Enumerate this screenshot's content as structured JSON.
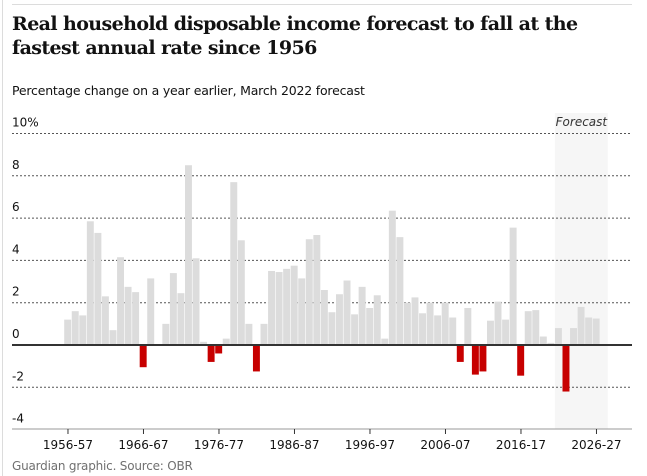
{
  "header": {
    "title": "Real household disposable income forecast to fall at the fastest annual rate since 1956",
    "subtitle": "Percentage change on a year earlier, March 2022 forecast"
  },
  "footer": {
    "source": "Guardian graphic. Source: OBR"
  },
  "colors": {
    "positive": "#dcdcdc",
    "negative": "#c70000",
    "forecast_shade": "#f6f6f6",
    "zero_line": "#333333",
    "grid": "#555555"
  },
  "chart_data": {
    "type": "bar",
    "title": "Real household disposable income forecast to fall at the fastest annual rate since 1956",
    "subtitle": "Percentage change on a year earlier, March 2022 forecast",
    "xlabel": "",
    "ylabel": "Percentage change on a year earlier",
    "ylim": [
      -4,
      10
    ],
    "yticks": [
      10,
      8,
      6,
      4,
      2,
      0,
      -2,
      -4
    ],
    "ytick_labels": [
      "10%",
      "8",
      "6",
      "4",
      "2",
      "0",
      "-2",
      "-4"
    ],
    "grid": true,
    "xtick_labels": [
      "1956-57",
      "1966-67",
      "1976-77",
      "1986-87",
      "1996-97",
      "2006-07",
      "2016-17",
      "2026-27"
    ],
    "forecast": {
      "label": "Forecast",
      "start": "2021-22",
      "end": "2027-28"
    },
    "categories": [
      "1956-57",
      "1957-58",
      "1958-59",
      "1959-60",
      "1960-61",
      "1961-62",
      "1962-63",
      "1963-64",
      "1964-65",
      "1965-66",
      "1966-67",
      "1967-68",
      "1968-69",
      "1969-70",
      "1970-71",
      "1971-72",
      "1972-73",
      "1973-74",
      "1974-75",
      "1975-76",
      "1976-77",
      "1977-78",
      "1978-79",
      "1979-80",
      "1980-81",
      "1981-82",
      "1982-83",
      "1983-84",
      "1984-85",
      "1985-86",
      "1986-87",
      "1987-88",
      "1988-89",
      "1989-90",
      "1990-91",
      "1991-92",
      "1992-93",
      "1993-94",
      "1994-95",
      "1995-96",
      "1996-97",
      "1997-98",
      "1998-99",
      "1999-00",
      "2000-01",
      "2001-02",
      "2002-03",
      "2003-04",
      "2004-05",
      "2005-06",
      "2006-07",
      "2007-08",
      "2008-09",
      "2009-10",
      "2010-11",
      "2011-12",
      "2012-13",
      "2013-14",
      "2014-15",
      "2015-16",
      "2016-17",
      "2017-18",
      "2018-19",
      "2019-20",
      "2020-21",
      "2021-22",
      "2022-23",
      "2023-24",
      "2024-25",
      "2025-26",
      "2026-27"
    ],
    "values": [
      1.2,
      1.6,
      1.4,
      5.85,
      5.3,
      2.3,
      0.7,
      4.15,
      2.75,
      2.5,
      -1.05,
      3.15,
      0.0,
      1.0,
      3.4,
      2.45,
      8.5,
      4.1,
      0.15,
      -0.8,
      -0.4,
      0.3,
      7.7,
      4.95,
      1.0,
      -1.25,
      1.0,
      3.5,
      3.45,
      3.6,
      3.75,
      3.15,
      5.0,
      5.2,
      2.6,
      1.55,
      2.4,
      3.05,
      1.45,
      2.75,
      1.75,
      2.35,
      0.3,
      6.35,
      5.1,
      2.0,
      2.25,
      1.5,
      2.0,
      1.4,
      2.0,
      1.3,
      -0.8,
      1.75,
      -1.4,
      -1.25,
      1.15,
      2.05,
      1.2,
      5.55,
      -1.45,
      1.6,
      1.65,
      0.4,
      0.1,
      0.8,
      -2.2,
      0.8,
      1.8,
      1.3,
      1.25
    ]
  }
}
